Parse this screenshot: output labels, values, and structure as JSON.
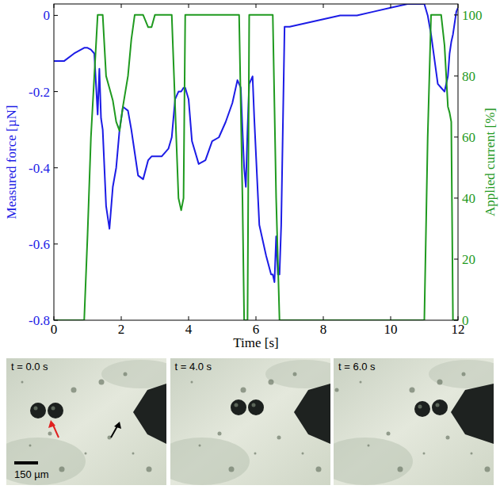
{
  "chart_data": {
    "type": "line",
    "x_label": "Time [s]",
    "y_label": "Measured force [µN]",
    "y2_label": "Applied current [%]",
    "x": [
      0,
      0.3,
      0.6,
      0.9,
      1.0,
      1.1,
      1.2,
      1.25,
      1.3,
      1.35,
      1.4,
      1.45,
      1.55,
      1.65,
      1.75,
      1.85,
      1.95,
      2.05,
      2.2,
      2.3,
      2.4,
      2.5,
      2.65,
      2.8,
      2.9,
      3.0,
      3.2,
      3.4,
      3.5,
      3.6,
      3.7,
      3.78,
      3.85,
      3.9,
      4.0,
      4.1,
      4.3,
      4.5,
      4.7,
      4.9,
      5.1,
      5.3,
      5.45,
      5.5,
      5.55,
      5.6,
      5.65,
      5.7,
      5.75,
      5.8,
      5.9,
      5.95,
      6.1,
      6.3,
      6.45,
      6.5,
      6.55,
      6.6,
      6.65,
      6.7,
      6.75,
      6.85,
      7.0,
      7.5,
      8.0,
      8.5,
      9.0,
      9.5,
      10.0,
      10.5,
      10.8,
      11.0,
      11.1,
      11.2,
      11.4,
      11.5,
      11.6,
      11.7,
      11.75,
      11.8,
      11.85,
      11.95,
      12.0
    ],
    "series": [
      {
        "color": "#1c1ce6",
        "line_style": "solid",
        "values": [
          -0.12,
          -0.12,
          -0.1,
          -0.085,
          -0.085,
          -0.09,
          -0.1,
          -0.18,
          -0.26,
          -0.14,
          -0.27,
          -0.3,
          -0.5,
          -0.56,
          -0.45,
          -0.4,
          -0.3,
          -0.24,
          -0.25,
          -0.3,
          -0.36,
          -0.42,
          -0.43,
          -0.38,
          -0.37,
          -0.37,
          -0.37,
          -0.35,
          -0.32,
          -0.22,
          -0.2,
          -0.2,
          -0.19,
          -0.19,
          -0.22,
          -0.33,
          -0.39,
          -0.38,
          -0.33,
          -0.32,
          -0.28,
          -0.23,
          -0.17,
          -0.18,
          -0.19,
          -0.3,
          -0.4,
          -0.45,
          -0.3,
          -0.18,
          -0.16,
          -0.27,
          -0.55,
          -0.63,
          -0.68,
          -0.68,
          -0.7,
          -0.58,
          -0.68,
          -0.68,
          -0.55,
          -0.03,
          -0.03,
          -0.02,
          -0.01,
          0.0,
          0.0,
          0.01,
          0.02,
          0.03,
          0.03,
          0.03,
          0.0,
          -0.05,
          -0.18,
          -0.19,
          -0.2,
          -0.16,
          -0.1,
          -0.07,
          -0.05,
          0.01,
          0.02
        ]
      },
      {
        "color": "#1f9a1f",
        "line_style": "solid",
        "axis": "y2",
        "values": [
          0,
          0,
          0,
          0,
          28,
          60,
          80,
          90,
          100,
          100,
          100,
          100,
          80,
          76,
          72,
          65,
          62,
          70,
          80,
          92,
          100,
          100,
          100,
          96,
          96,
          100,
          100,
          100,
          100,
          70,
          40,
          36,
          40,
          100,
          100,
          100,
          100,
          100,
          100,
          100,
          100,
          100,
          100,
          100,
          70,
          40,
          0,
          0,
          0,
          100,
          100,
          100,
          100,
          100,
          100,
          100,
          70,
          40,
          20,
          0,
          0,
          0,
          0,
          0,
          0,
          0,
          0,
          0,
          0,
          0,
          0,
          0,
          60,
          100,
          100,
          100,
          90,
          70,
          68,
          65,
          0,
          0,
          0
        ]
      }
    ],
    "xlim": [
      0,
      12
    ],
    "xticks": [
      0,
      2,
      4,
      6,
      8,
      10,
      12
    ],
    "ylim": [
      -0.8,
      0.03
    ],
    "yticks": [
      -0.8,
      -0.6,
      -0.4,
      -0.2,
      0
    ],
    "y2lim": [
      0,
      103.6
    ],
    "y2ticks": [
      0,
      20,
      40,
      60,
      80,
      100
    ],
    "grid": false
  },
  "images": {
    "panels": [
      {
        "label": "t = 0.0 s"
      },
      {
        "label": "t = 4.0 s"
      },
      {
        "label": "t = 6.0 s"
      }
    ],
    "scale_bar": "150 µm"
  }
}
